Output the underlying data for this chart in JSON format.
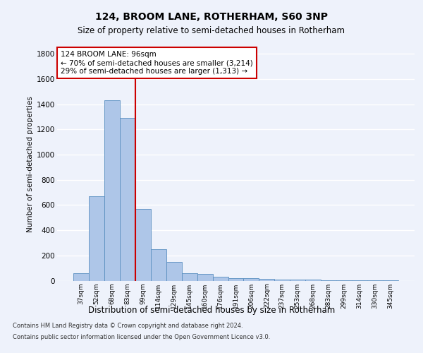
{
  "title_line1": "124, BROOM LANE, ROTHERHAM, S60 3NP",
  "title_line2": "Size of property relative to semi-detached houses in Rotherham",
  "xlabel": "Distribution of semi-detached houses by size in Rotherham",
  "ylabel": "Number of semi-detached properties",
  "categories": [
    "37sqm",
    "52sqm",
    "68sqm",
    "83sqm",
    "99sqm",
    "114sqm",
    "129sqm",
    "145sqm",
    "160sqm",
    "176sqm",
    "191sqm",
    "206sqm",
    "222sqm",
    "237sqm",
    "253sqm",
    "268sqm",
    "283sqm",
    "299sqm",
    "314sqm",
    "330sqm",
    "345sqm"
  ],
  "values": [
    60,
    670,
    1430,
    1290,
    570,
    250,
    150,
    60,
    55,
    30,
    20,
    20,
    15,
    10,
    10,
    10,
    5,
    5,
    5,
    5,
    5
  ],
  "bar_color": "#aec6e8",
  "bar_edge_color": "#5a8fc0",
  "vline_x_index": 4,
  "vline_color": "#cc0000",
  "annotation_text": "124 BROOM LANE: 96sqm\n← 70% of semi-detached houses are smaller (3,214)\n29% of semi-detached houses are larger (1,313) →",
  "annotation_box_color": "white",
  "annotation_box_edge_color": "#cc0000",
  "ylim": [
    0,
    1850
  ],
  "yticks": [
    0,
    200,
    400,
    600,
    800,
    1000,
    1200,
    1400,
    1600,
    1800
  ],
  "background_color": "#eef2fb",
  "plot_background": "#eef2fb",
  "grid_color": "white",
  "footer_line1": "Contains HM Land Registry data © Crown copyright and database right 2024.",
  "footer_line2": "Contains public sector information licensed under the Open Government Licence v3.0."
}
